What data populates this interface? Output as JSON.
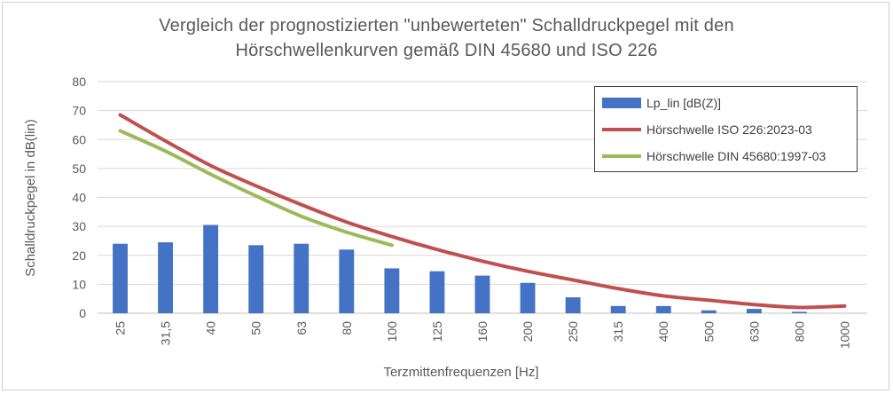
{
  "chart_data": {
    "type": "bar",
    "title_line1": "Vergleich der prognostizierten \"unbewerteten\" Schalldruckpegel mit den",
    "title_line2": "Hörschwellenkurven gemäß DIN 45680 und ISO 226",
    "xlabel": "Terzmittenfrequenzen  [Hz]",
    "ylabel": "Schalldruckpegel in dB(lin)",
    "ylim": [
      0,
      80
    ],
    "yticks": [
      0,
      10,
      20,
      30,
      40,
      50,
      60,
      70,
      80
    ],
    "grid": true,
    "legend_position": "top-right",
    "categories": [
      "25",
      "31,5",
      "40",
      "50",
      "63",
      "80",
      "100",
      "125",
      "160",
      "200",
      "250",
      "315",
      "400",
      "500",
      "630",
      "800",
      "1000"
    ],
    "series": [
      {
        "name": "Lp_lin [dB(Z)]",
        "type": "bar",
        "color": "#4472C4",
        "values": [
          24,
          24.5,
          30.5,
          23.5,
          24,
          22,
          15.5,
          14.5,
          13,
          10.5,
          5.5,
          2.5,
          2.5,
          1,
          1.5,
          0.5,
          null
        ]
      },
      {
        "name": "Hörschwelle ISO 226:2023-03",
        "type": "line",
        "color": "#C0504D",
        "values": [
          68.5,
          59.5,
          51,
          44,
          37.5,
          31.5,
          26.5,
          22,
          18,
          14.5,
          11.5,
          8.5,
          6,
          4.5,
          3,
          2,
          2.5
        ]
      },
      {
        "name": "Hörschwelle DIN 45680:1997-03",
        "type": "line",
        "color": "#9BBB59",
        "values": [
          63,
          56,
          48,
          40.5,
          33.5,
          28,
          23.5,
          null,
          null,
          null,
          null,
          null,
          null,
          null,
          null,
          null,
          null
        ]
      }
    ]
  }
}
